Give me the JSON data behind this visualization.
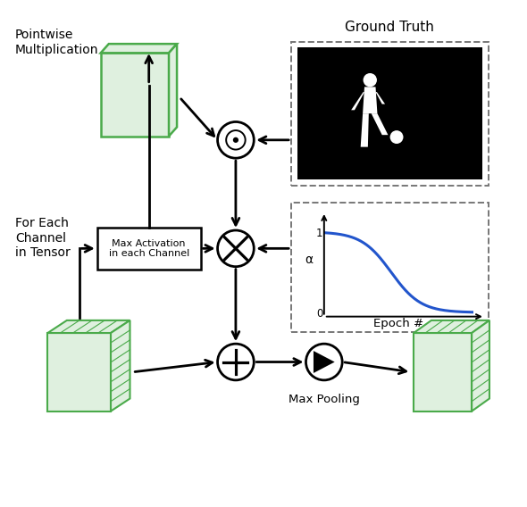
{
  "fig_width": 5.9,
  "fig_height": 5.68,
  "dpi": 100,
  "bg_color": "#ffffff",
  "green_face": "#dff0df",
  "green_edge": "#4aaa4a",
  "black": "#000000",
  "blue_curve": "#2255cc",
  "arrow_lw": 2.0,
  "label_pointwise": "Pointwise\nMultiplication",
  "label_for_each": "For Each\nChannel\nin Tensor",
  "label_max_act": "Max Activation\nin each Channel",
  "label_ground_truth": "Ground Truth",
  "label_max_pooling": "Max Pooling",
  "label_epoch": "Epoch #",
  "label_alpha": "α",
  "label_0": "0",
  "label_1": "1"
}
